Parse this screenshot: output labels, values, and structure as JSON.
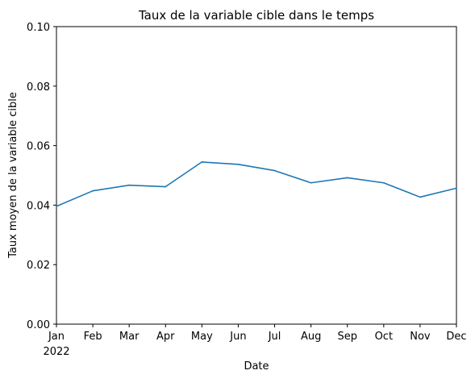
{
  "chart_data": {
    "type": "line",
    "title": "Taux de la variable cible dans le temps",
    "xlabel": "Date",
    "ylabel": "Taux moyen de la variable cible",
    "x": [
      "Jan",
      "Feb",
      "Mar",
      "Apr",
      "May",
      "Jun",
      "Jul",
      "Aug",
      "Sep",
      "Oct",
      "Nov",
      "Dec"
    ],
    "x_year_label": "2022",
    "series": [
      {
        "values": [
          0.0396,
          0.0448,
          0.0467,
          0.0462,
          0.0545,
          0.0537,
          0.0516,
          0.0475,
          0.0492,
          0.0475,
          0.0427,
          0.0457
        ],
        "color": "#1f77b4"
      }
    ],
    "yticks": [
      "0.00",
      "0.02",
      "0.04",
      "0.06",
      "0.08",
      "0.10"
    ],
    "ylim": [
      0,
      0.1
    ],
    "grid": false,
    "legend": false
  }
}
